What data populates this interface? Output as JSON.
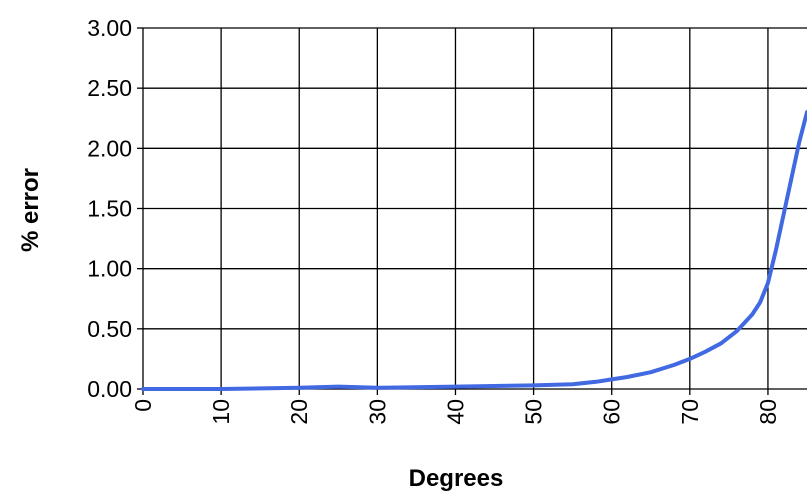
{
  "chart_data": {
    "type": "line",
    "title": "",
    "xlabel": "Degrees",
    "ylabel": "% error",
    "xlim": [
      0,
      85
    ],
    "ylim": [
      0,
      3
    ],
    "grid": true,
    "legend": "none",
    "line_color": "#4169E1",
    "x_ticks": [
      "0",
      "10",
      "20",
      "30",
      "40",
      "50",
      "60",
      "70",
      "80"
    ],
    "x_tick_values": [
      0,
      10,
      20,
      30,
      40,
      50,
      60,
      70,
      80
    ],
    "y_ticks": [
      "0.00",
      "0.50",
      "1.00",
      "1.50",
      "2.00",
      "2.50",
      "3.00"
    ],
    "y_tick_values": [
      0,
      0.5,
      1.0,
      1.5,
      2.0,
      2.5,
      3.0
    ],
    "series": [
      {
        "x": [
          0,
          10,
          20,
          25,
          30,
          40,
          50,
          55,
          58,
          60,
          62,
          65,
          68,
          70,
          72,
          74,
          76,
          78,
          79,
          80,
          81,
          82,
          83,
          84,
          85
        ],
        "y": [
          0,
          0,
          0.01,
          0.02,
          0.01,
          0.02,
          0.03,
          0.04,
          0.06,
          0.08,
          0.1,
          0.14,
          0.2,
          0.25,
          0.31,
          0.38,
          0.48,
          0.62,
          0.72,
          0.88,
          1.15,
          1.45,
          1.75,
          2.05,
          2.3
        ]
      }
    ]
  }
}
